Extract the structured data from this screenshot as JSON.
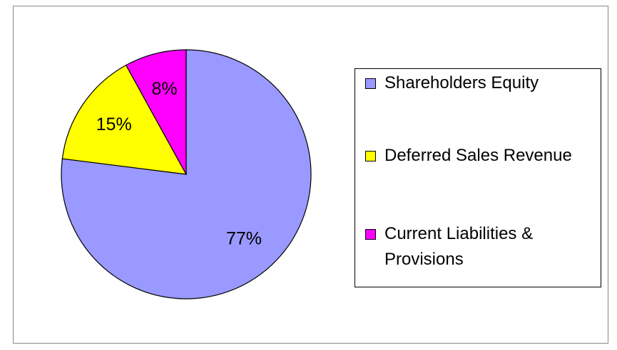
{
  "chart_data": {
    "type": "pie",
    "categories": [
      "Shareholders Equity",
      "Deferred Sales Revenue",
      "Current Liabilities & Provisions"
    ],
    "values": [
      77,
      15,
      8
    ],
    "value_labels": [
      "77%",
      "15%",
      "8%"
    ],
    "colors": [
      "#9999ff",
      "#ffff00",
      "#ff00ff"
    ],
    "legend": "right"
  }
}
